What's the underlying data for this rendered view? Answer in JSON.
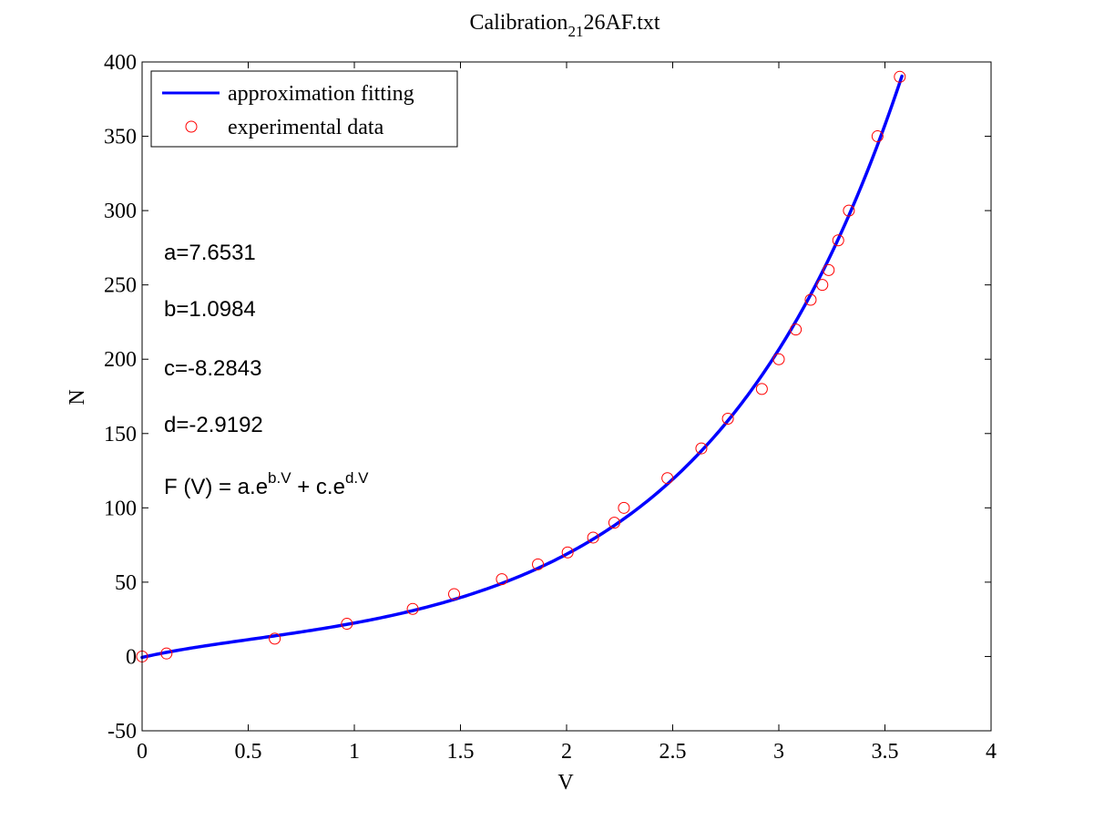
{
  "chart_data": {
    "type": "scatter",
    "title": {
      "base": "Calibration",
      "subscript": "21",
      "rest": "26AF.txt"
    },
    "xlabel": "V",
    "ylabel": "N",
    "xlim": [
      0,
      4
    ],
    "ylim": [
      -50,
      400
    ],
    "x_ticks": [
      0,
      0.5,
      1,
      1.5,
      2,
      2.5,
      3,
      3.5,
      4
    ],
    "y_ticks": [
      -50,
      0,
      50,
      100,
      150,
      200,
      250,
      300,
      350,
      400
    ],
    "x_tick_labels": [
      "0",
      "0.5",
      "1",
      "1.5",
      "2",
      "2.5",
      "3",
      "3.5",
      "4"
    ],
    "y_tick_labels": [
      "-50",
      "0",
      "50",
      "100",
      "150",
      "200",
      "250",
      "300",
      "350",
      "400"
    ],
    "grid": false,
    "legend_position": "top-left",
    "series": [
      {
        "name": "approximation fitting",
        "kind": "line",
        "color": "#0000ff",
        "fit": {
          "a": 7.6531,
          "b": 1.0984,
          "c": -8.2843,
          "d": -2.9192,
          "x_range": [
            0,
            3.58
          ]
        }
      },
      {
        "name": "experimental data",
        "kind": "marker",
        "color": "#ff0000",
        "marker": "circle-open",
        "x": [
          0,
          0.115,
          0.625,
          0.965,
          1.275,
          1.47,
          1.695,
          1.865,
          2.005,
          2.125,
          2.225,
          2.27,
          2.475,
          2.635,
          2.76,
          2.92,
          3.0,
          3.08,
          3.15,
          3.205,
          3.235,
          3.28,
          3.33,
          3.465,
          3.57
        ],
        "y": [
          0,
          2,
          12,
          22,
          32,
          42,
          52,
          62,
          70,
          80,
          90,
          100,
          120,
          140,
          160,
          180,
          200,
          220,
          240,
          250,
          260,
          280,
          300,
          350,
          390
        ]
      }
    ],
    "annotations": [
      {
        "text": "a=7.6531"
      },
      {
        "text": "b=1.0984"
      },
      {
        "text": "c=-8.2843"
      },
      {
        "text": "d=-2.9192"
      },
      {
        "text": "F (V) = a.e^{b.V} + c.e^{d.V}",
        "parts": {
          "lead": "F (V) = a.e",
          "sup1": "b.V",
          "mid": " + c.e",
          "sup2": "d.V"
        }
      }
    ]
  }
}
